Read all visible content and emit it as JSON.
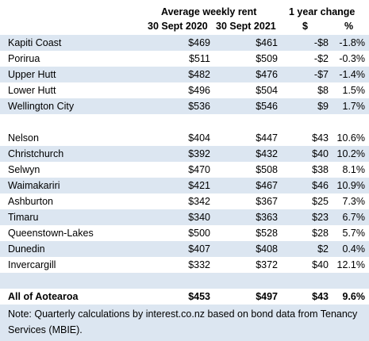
{
  "header": {
    "group_rent": "Average weekly rent",
    "group_change": "1 year change",
    "col_2020": "30 Sept 2020",
    "col_2021": "30 Sept 2021",
    "col_dollar": "$",
    "col_pct": "%"
  },
  "group1": [
    {
      "name": "Kapiti Coast",
      "r2020": "$469",
      "r2021": "$461",
      "chg": "-$8",
      "pct": "-1.8%"
    },
    {
      "name": "Porirua",
      "r2020": "$511",
      "r2021": "$509",
      "chg": "-$2",
      "pct": "-0.3%"
    },
    {
      "name": "Upper Hutt",
      "r2020": "$482",
      "r2021": "$476",
      "chg": "-$7",
      "pct": "-1.4%"
    },
    {
      "name": "Lower Hutt",
      "r2020": "$496",
      "r2021": "$504",
      "chg": "$8",
      "pct": "1.5%"
    },
    {
      "name": "Wellington City",
      "r2020": "$536",
      "r2021": "$546",
      "chg": "$9",
      "pct": "1.7%"
    }
  ],
  "group2": [
    {
      "name": "Nelson",
      "r2020": "$404",
      "r2021": "$447",
      "chg": "$43",
      "pct": "10.6%"
    },
    {
      "name": "Christchurch",
      "r2020": "$392",
      "r2021": "$432",
      "chg": "$40",
      "pct": "10.2%"
    },
    {
      "name": "Selwyn",
      "r2020": "$470",
      "r2021": "$508",
      "chg": "$38",
      "pct": "8.1%"
    },
    {
      "name": "Waimakariri",
      "r2020": "$421",
      "r2021": "$467",
      "chg": "$46",
      "pct": "10.9%"
    },
    {
      "name": "Ashburton",
      "r2020": "$342",
      "r2021": "$367",
      "chg": "$25",
      "pct": "7.3%"
    },
    {
      "name": "Timaru",
      "r2020": "$340",
      "r2021": "$363",
      "chg": "$23",
      "pct": "6.7%"
    },
    {
      "name": "Queenstown-Lakes",
      "r2020": "$500",
      "r2021": "$528",
      "chg": "$28",
      "pct": "5.7%"
    },
    {
      "name": "Dunedin",
      "r2020": "$407",
      "r2021": "$408",
      "chg": "$2",
      "pct": "0.4%"
    },
    {
      "name": "Invercargill",
      "r2020": "$332",
      "r2021": "$372",
      "chg": "$40",
      "pct": "12.1%"
    }
  ],
  "total": {
    "name": "All of Aotearoa",
    "r2020": "$453",
    "r2021": "$497",
    "chg": "$43",
    "pct": "9.6%"
  },
  "note": "Note: Quarterly calculations by interest.co.nz based on bond data from Tenancy Services (MBIE)."
}
